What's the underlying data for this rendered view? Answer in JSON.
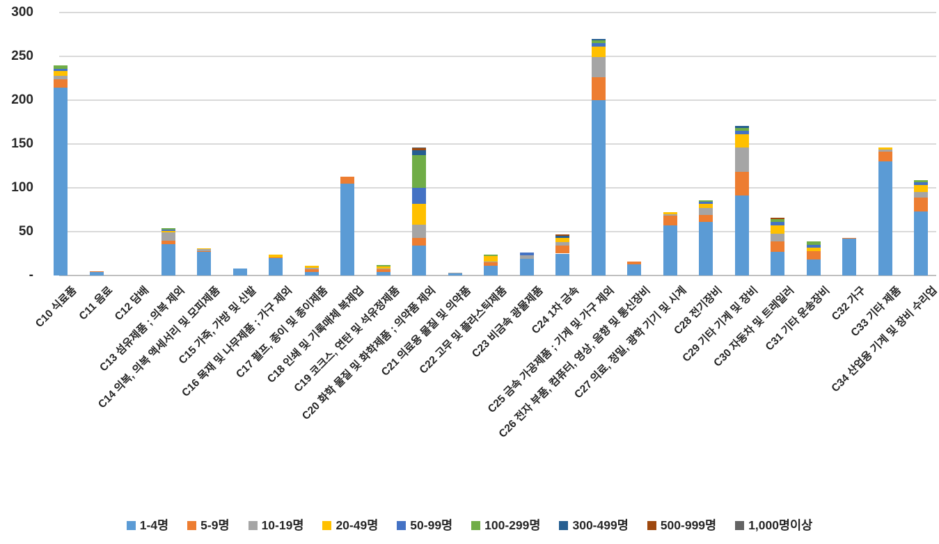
{
  "chart_data": {
    "type": "bar",
    "stacked": true,
    "title": "",
    "xlabel": "",
    "ylabel": "",
    "grid": true,
    "legend_position": "bottom",
    "y_axis": {
      "min": 0,
      "max": 300,
      "step": 50,
      "tick_labels": [
        "300",
        "250",
        "200",
        "150",
        "100",
        "50",
        "-"
      ]
    },
    "categories": [
      "C10 식료품",
      "C11 음료",
      "C12 담배",
      "C13 섬유제품 ; 의복 제외",
      "C14 의복, 의복 액세서리 및 모피제품",
      "C15 가죽, 가방 및 신발",
      "C16 목재 및 나무제품 ; 가구 제외",
      "C17 펄프, 종이 및 종이제품",
      "C18 인쇄 및 기록매체 복제업",
      "C19 코크스, 연탄 및 석유정제품",
      "C20 화학 물질 및 화학제품 ; 의약품 제외",
      "C21 의료용 물질 및 의약품",
      "C22 고무 및 플라스틱제품",
      "C23 비금속 광물제품",
      "C24 1차 금속",
      "C25 금속 가공제품 ; 기계 및 가구 제외",
      "C26 전자 부품, 컴퓨터, 영상, 음향 및 통신장비",
      "C27 의료, 정밀, 광학 기기 및 시계",
      "C28 전기장비",
      "C29 기타 기계 및 장비",
      "C30 자동차 및 트레일러",
      "C31 기타 운송장비",
      "C32 가구",
      "C33 기타 제품",
      "C34 산업용 기계 및 장비 수리업"
    ],
    "series": [
      {
        "name": "1-4명",
        "color": "#5B9BD5",
        "values": [
          214,
          4,
          0,
          36,
          27,
          8,
          20,
          4,
          105,
          4,
          34,
          2,
          11,
          19,
          25,
          200,
          13,
          57,
          61,
          91,
          27,
          18,
          42,
          130,
          73
        ]
      },
      {
        "name": "5-9명",
        "color": "#ED7D31",
        "values": [
          10,
          1,
          0,
          4,
          1,
          0,
          1,
          3,
          8,
          3,
          9,
          0,
          4,
          0,
          9,
          26,
          3,
          11,
          8,
          27,
          12,
          10,
          1,
          11,
          16
        ]
      },
      {
        "name": "10-19명",
        "color": "#A5A5A5",
        "values": [
          4,
          0,
          0,
          9,
          2,
          0,
          0,
          2,
          0,
          1,
          15,
          1,
          1,
          4,
          4,
          23,
          0,
          2,
          8,
          28,
          9,
          0,
          0,
          3,
          6
        ]
      },
      {
        "name": "20-49명",
        "color": "#FFC000",
        "values": [
          5,
          0,
          0,
          2,
          1,
          0,
          3,
          2,
          0,
          2,
          24,
          0,
          6,
          0,
          5,
          12,
          0,
          2,
          5,
          15,
          9,
          4,
          0,
          2,
          8
        ]
      },
      {
        "name": "50-99명",
        "color": "#4472C4",
        "values": [
          3,
          0,
          0,
          1,
          0,
          0,
          0,
          0,
          0,
          0,
          18,
          0,
          0,
          3,
          0,
          4,
          0,
          0,
          2,
          4,
          4,
          3,
          0,
          0,
          3
        ]
      },
      {
        "name": "100-299명",
        "color": "#70AD47",
        "values": [
          4,
          0,
          0,
          2,
          0,
          0,
          0,
          0,
          0,
          2,
          37,
          0,
          2,
          0,
          0,
          3,
          0,
          0,
          2,
          3,
          3,
          4,
          0,
          0,
          3
        ]
      },
      {
        "name": "300-499명",
        "color": "#255E91",
        "values": [
          0,
          0,
          0,
          0,
          0,
          0,
          0,
          0,
          0,
          0,
          6,
          0,
          0,
          0,
          2,
          2,
          0,
          0,
          0,
          3,
          0,
          0,
          0,
          0,
          0
        ]
      },
      {
        "name": "500-999명",
        "color": "#9E480E",
        "values": [
          0,
          0,
          0,
          0,
          0,
          0,
          0,
          0,
          0,
          0,
          2,
          0,
          0,
          0,
          2,
          0,
          0,
          0,
          0,
          0,
          2,
          0,
          0,
          0,
          0
        ]
      },
      {
        "name": "1,000명이상",
        "color": "#636363",
        "values": [
          0,
          0,
          0,
          0,
          0,
          0,
          0,
          0,
          0,
          0,
          1,
          0,
          0,
          0,
          0,
          0,
          0,
          0,
          0,
          0,
          0,
          0,
          0,
          0,
          0
        ]
      }
    ],
    "colors": {
      "gridline": "#D9D9D9",
      "axis_line": "#BFBFBF",
      "text": "#262626",
      "background": "#FFFFFF"
    }
  }
}
